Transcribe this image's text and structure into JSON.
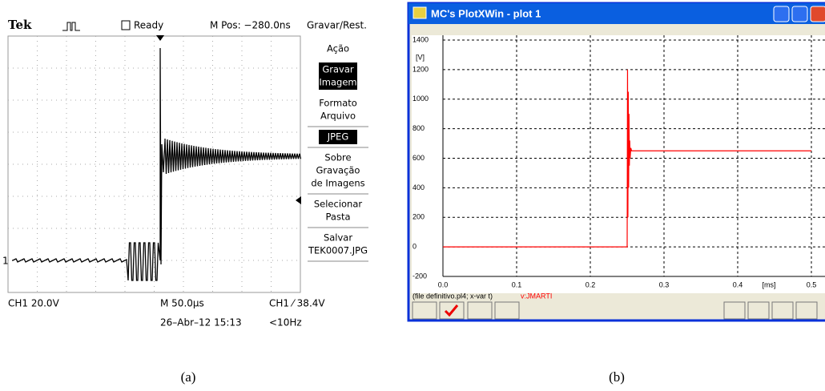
{
  "panel_a": {
    "header": {
      "brand": "Tek",
      "status": "Ready",
      "position": "M Pos: −280.0ns"
    },
    "menu": {
      "title": "Gravar/Rest.",
      "items": [
        [
          "Ação"
        ],
        [
          "Gravar",
          "Imagem"
        ],
        [
          "Formato",
          "Arquivo"
        ],
        [
          "JPEG"
        ],
        [
          "Sobre",
          "Gravação",
          "de Imagens"
        ],
        [
          "Selecionar",
          "Pasta"
        ],
        [
          "Salvar",
          "TEK0007.JPG"
        ]
      ]
    },
    "channel_marker": "1",
    "footer": {
      "channel": "CH1  20.0V",
      "timebase": "M 50.0µs",
      "trigger": "CH1 ⁄ 38.4V",
      "date": "26–Abr–12 15:13",
      "frequency": "<10Hz"
    },
    "caption": "(a)"
  },
  "panel_b": {
    "window_title": "MC's PlotXWin - plot 1",
    "file_info": "(file definitivo.pl4; x-var t)",
    "variable": "v:JMARTI",
    "caption": "(b)"
  },
  "chart_data": {
    "type": "line",
    "y_label": "[V]",
    "x_label": "[ms]",
    "x": [
      0,
      0.25,
      0.2505,
      0.251,
      0.2515,
      0.252,
      0.2525,
      0.253,
      0.2535,
      0.254,
      0.255,
      0.256,
      0.5
    ],
    "series": [
      {
        "name": "v:JMARTI",
        "color": "#ff0000",
        "values": [
          0,
          0,
          1200,
          200,
          1050,
          400,
          900,
          550,
          720,
          600,
          670,
          650,
          650
        ]
      }
    ],
    "xlim": [
      0,
      0.5
    ],
    "ylim": [
      -200,
      1400
    ],
    "xticks": [
      {
        "value": 0,
        "label": "0.0"
      },
      0.1,
      0.2,
      0.3,
      0.4,
      0.5
    ],
    "yticks": [
      -200,
      0,
      200,
      400,
      600,
      800,
      1000,
      1200,
      1400
    ],
    "grid": true
  }
}
